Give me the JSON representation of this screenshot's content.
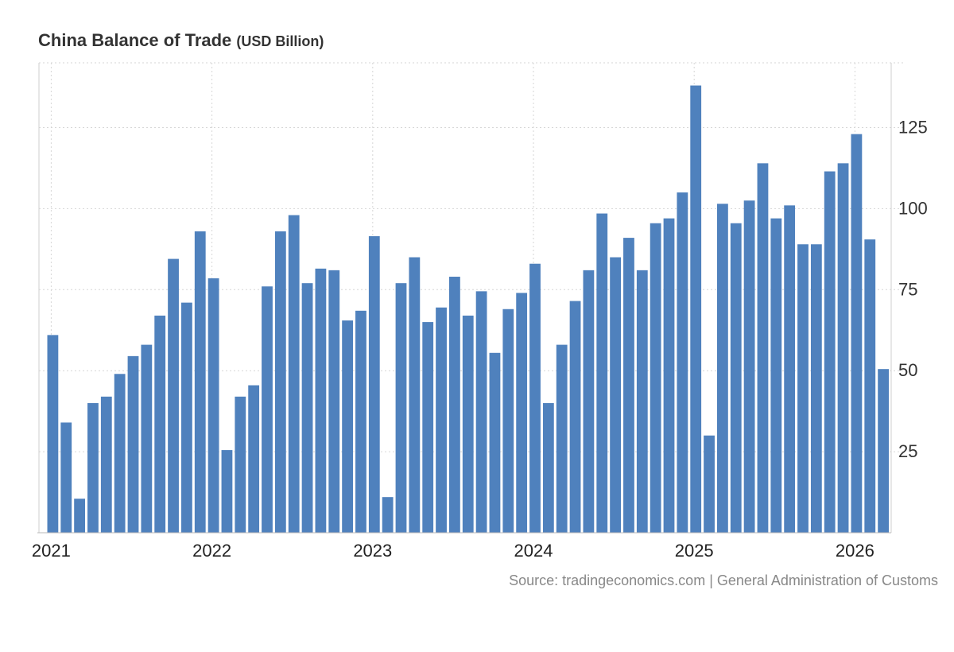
{
  "chart_data": {
    "type": "bar",
    "title": "China Balance of Trade",
    "unit": "(USD Billion)",
    "xlabel": "",
    "ylabel": "",
    "ylim": [
      0,
      145
    ],
    "yticks": [
      25,
      50,
      75,
      100,
      125
    ],
    "xtick_labels": [
      {
        "label": "2021",
        "index": 0
      },
      {
        "label": "2022",
        "index": 12
      },
      {
        "label": "2023",
        "index": 24
      },
      {
        "label": "2024",
        "index": 36
      },
      {
        "label": "2025",
        "index": 48
      },
      {
        "label": "2026",
        "index": 60
      }
    ],
    "color": "#4f81bd",
    "grid": true,
    "categories": [
      "2021-01",
      "2021-02",
      "2021-03",
      "2021-04",
      "2021-05",
      "2021-06",
      "2021-07",
      "2021-08",
      "2021-09",
      "2021-10",
      "2021-11",
      "2021-12",
      "2022-01",
      "2022-02",
      "2022-03",
      "2022-04",
      "2022-05",
      "2022-06",
      "2022-07",
      "2022-08",
      "2022-09",
      "2022-10",
      "2022-11",
      "2022-12",
      "2023-01",
      "2023-02",
      "2023-03",
      "2023-04",
      "2023-05",
      "2023-06",
      "2023-07",
      "2023-08",
      "2023-09",
      "2023-10",
      "2023-11",
      "2023-12",
      "2024-01",
      "2024-02",
      "2024-03",
      "2024-04",
      "2024-05",
      "2024-06",
      "2024-07",
      "2024-08",
      "2024-09",
      "2024-10",
      "2024-11",
      "2024-12",
      "2025-01",
      "2025-02",
      "2025-03",
      "2025-04",
      "2025-05",
      "2025-06",
      "2025-07",
      "2025-08",
      "2025-09",
      "2025-10",
      "2025-11",
      "2025-12",
      "2026-01",
      "2026-02",
      "2026-03"
    ],
    "values": [
      61,
      34,
      10.5,
      40,
      42,
      49,
      54.5,
      58,
      67,
      84.5,
      71,
      93,
      78.5,
      25.5,
      42,
      45.5,
      76,
      93,
      98,
      77,
      81.5,
      81,
      65.5,
      68.5,
      91.5,
      11,
      77,
      85,
      65,
      69.5,
      79,
      67,
      74.5,
      55.5,
      69,
      74,
      83,
      40,
      58,
      71.5,
      81,
      98.5,
      85,
      91,
      81,
      95.5,
      97,
      105,
      138,
      30,
      101.5,
      95.5,
      102.5,
      114,
      97,
      101,
      89,
      89,
      111.5,
      114,
      123,
      90.5,
      50.5
    ]
  },
  "source": "Source: tradingeconomics.com | General Administration of Customs"
}
